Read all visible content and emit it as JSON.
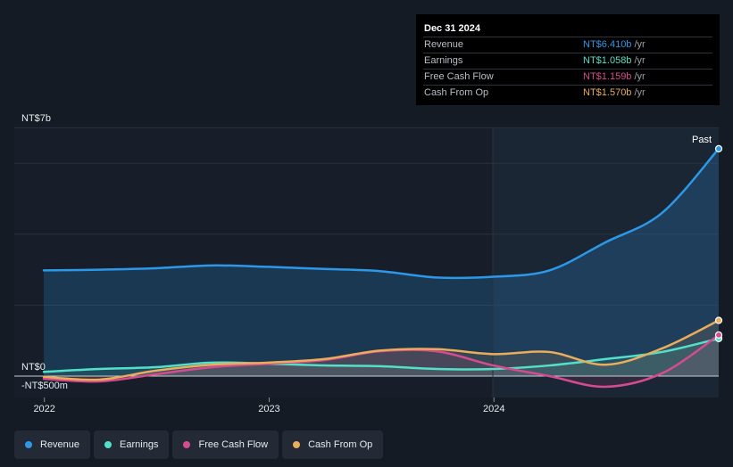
{
  "chart_data": {
    "type": "line",
    "x_ticks": [
      "2022",
      "2023",
      "2024"
    ],
    "y_ticks": [
      "NT$7b",
      "NT$0",
      "-NT$500m"
    ],
    "past_label": "Past",
    "x": [
      "2021-12-31",
      "2022-03-31",
      "2022-06-30",
      "2022-09-30",
      "2022-12-31",
      "2023-03-31",
      "2023-06-30",
      "2023-09-30",
      "2023-12-31",
      "2024-03-31",
      "2024-06-30",
      "2024-09-30",
      "2024-12-31"
    ],
    "ylim": [
      -0.5,
      7
    ],
    "series": [
      {
        "name": "Revenue",
        "color": "#2e98e8",
        "values": [
          2.98,
          3.0,
          3.04,
          3.12,
          3.08,
          3.02,
          2.96,
          2.78,
          2.8,
          2.98,
          3.77,
          4.6,
          6.41
        ]
      },
      {
        "name": "Earnings",
        "color": "#53e0c8",
        "values": [
          0.12,
          0.2,
          0.25,
          0.38,
          0.35,
          0.3,
          0.28,
          0.2,
          0.2,
          0.3,
          0.48,
          0.68,
          1.058
        ]
      },
      {
        "name": "Free Cash Flow",
        "color": "#d64b8f",
        "values": [
          -0.08,
          -0.15,
          0.05,
          0.25,
          0.35,
          0.45,
          0.7,
          0.7,
          0.3,
          0.0,
          -0.3,
          0.08,
          1.159
        ]
      },
      {
        "name": "Cash From Op",
        "color": "#e9ad5b",
        "values": [
          -0.02,
          -0.1,
          0.15,
          0.32,
          0.38,
          0.48,
          0.72,
          0.76,
          0.62,
          0.68,
          0.32,
          0.78,
          1.57
        ]
      }
    ]
  },
  "tooltip": {
    "date": "Dec 31 2024",
    "rows": [
      {
        "name": "Revenue",
        "value": "NT$6.410b",
        "unit": "/yr",
        "color": "#2e98e8"
      },
      {
        "name": "Earnings",
        "value": "NT$1.058b",
        "unit": "/yr",
        "color": "#53e0c8"
      },
      {
        "name": "Free Cash Flow",
        "value": "NT$1.159b",
        "unit": "/yr",
        "color": "#d64b8f"
      },
      {
        "name": "Cash From Op",
        "value": "NT$1.570b",
        "unit": "/yr",
        "color": "#e9ad5b"
      }
    ]
  },
  "legend": [
    {
      "label": "Revenue",
      "color": "#2e98e8"
    },
    {
      "label": "Earnings",
      "color": "#53e0c8"
    },
    {
      "label": "Free Cash Flow",
      "color": "#d64b8f"
    },
    {
      "label": "Cash From Op",
      "color": "#e9ad5b"
    }
  ]
}
